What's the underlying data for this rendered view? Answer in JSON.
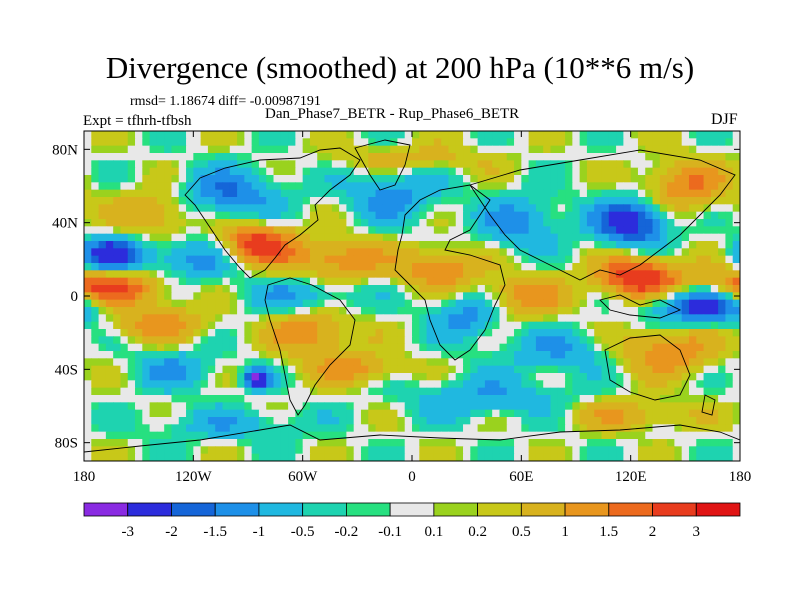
{
  "header": {
    "title": "Divergence (smoothed) at 200 hPa (10**6 m/s)",
    "stats": "rmsd= 1.18674 diff= -0.00987191",
    "experiment": "Expt = tfhrh-tfbsh",
    "cases": "Dan_Phase7_BETR - Rup_Phase6_BETR",
    "season": "DJF"
  },
  "chart_data": {
    "type": "heatmap",
    "title": "Divergence (smoothed) at 200 hPa (10**6 m/s)",
    "xlabel": "",
    "ylabel": "",
    "xlim": [
      -180,
      180
    ],
    "ylim": [
      -90,
      90
    ],
    "x_ticks": [
      {
        "value": -180,
        "label": "180"
      },
      {
        "value": -120,
        "label": "120W"
      },
      {
        "value": -60,
        "label": "60W"
      },
      {
        "value": 0,
        "label": "0"
      },
      {
        "value": 60,
        "label": "60E"
      },
      {
        "value": 120,
        "label": "120E"
      },
      {
        "value": 180,
        "label": "180"
      }
    ],
    "y_ticks": [
      {
        "value": 80,
        "label": "80N"
      },
      {
        "value": 40,
        "label": "40N"
      },
      {
        "value": 0,
        "label": "0"
      },
      {
        "value": -40,
        "label": "40S"
      },
      {
        "value": -80,
        "label": "80S"
      }
    ],
    "colorbar": {
      "colors": [
        "#8a2be2",
        "#2c2cdc",
        "#1565d8",
        "#1e90e8",
        "#20b8e0",
        "#1ed3b0",
        "#27e080",
        "#e8e8e8",
        "#9ad21e",
        "#c8c819",
        "#d8b21e",
        "#e8961e",
        "#ec6a1e",
        "#e83c1e",
        "#e01414"
      ],
      "labels": [
        "-3",
        "-2",
        "-1.5",
        "-1",
        "-0.5",
        "-0.2",
        "-0.1",
        "0.1",
        "0.2",
        "0.5",
        "1",
        "1.5",
        "2",
        "3"
      ]
    },
    "features": [
      {
        "lon": -170,
        "lat": 5,
        "value": 2.5,
        "sx": 22,
        "sy": 7
      },
      {
        "lon": -165,
        "lat": 22,
        "value": -2.5,
        "sx": 12,
        "sy": 7
      },
      {
        "lon": -120,
        "lat": 20,
        "value": -1.2,
        "sx": 20,
        "sy": 8
      },
      {
        "lon": -85,
        "lat": 28,
        "value": 2.5,
        "sx": 14,
        "sy": 8
      },
      {
        "lon": -100,
        "lat": 55,
        "value": -1.5,
        "sx": 20,
        "sy": 10
      },
      {
        "lon": -140,
        "lat": 45,
        "value": 1.2,
        "sx": 16,
        "sy": 9
      },
      {
        "lon": -40,
        "lat": 20,
        "value": 1.5,
        "sx": 18,
        "sy": 8
      },
      {
        "lon": -60,
        "lat": 0,
        "value": -1.0,
        "sx": 22,
        "sy": 7
      },
      {
        "lon": -55,
        "lat": -20,
        "value": 1.4,
        "sx": 16,
        "sy": 9
      },
      {
        "lon": -85,
        "lat": -45,
        "value": -3.0,
        "sx": 5,
        "sy": 4
      },
      {
        "lon": -30,
        "lat": -40,
        "value": 1.2,
        "sx": 18,
        "sy": 6
      },
      {
        "lon": -10,
        "lat": 55,
        "value": -1.2,
        "sx": 18,
        "sy": 10
      },
      {
        "lon": 15,
        "lat": 15,
        "value": 1.6,
        "sx": 14,
        "sy": 8
      },
      {
        "lon": 30,
        "lat": -10,
        "value": -1.3,
        "sx": 14,
        "sy": 9
      },
      {
        "lon": 60,
        "lat": 40,
        "value": -1.2,
        "sx": 16,
        "sy": 10
      },
      {
        "lon": 60,
        "lat": 0,
        "value": 1.3,
        "sx": 18,
        "sy": 8
      },
      {
        "lon": 80,
        "lat": -30,
        "value": -1.0,
        "sx": 20,
        "sy": 8
      },
      {
        "lon": 120,
        "lat": 40,
        "value": -2.5,
        "sx": 14,
        "sy": 9
      },
      {
        "lon": 125,
        "lat": 10,
        "value": 2.7,
        "sx": 16,
        "sy": 8
      },
      {
        "lon": 150,
        "lat": 60,
        "value": 1.5,
        "sx": 16,
        "sy": 10
      },
      {
        "lon": 160,
        "lat": -5,
        "value": -2.5,
        "sx": 20,
        "sy": 7
      },
      {
        "lon": 140,
        "lat": -30,
        "value": 1.5,
        "sx": 18,
        "sy": 9
      },
      {
        "lon": 40,
        "lat": -55,
        "value": -1.0,
        "sx": 30,
        "sy": 8
      },
      {
        "lon": -100,
        "lat": -70,
        "value": -0.8,
        "sx": 30,
        "sy": 6
      },
      {
        "lon": 120,
        "lat": -65,
        "value": 0.9,
        "sx": 25,
        "sy": 6
      },
      {
        "lon": 0,
        "lat": 75,
        "value": 0.8,
        "sx": 30,
        "sy": 5
      },
      {
        "lon": -140,
        "lat": -15,
        "value": 1.2,
        "sx": 20,
        "sy": 7
      },
      {
        "lon": -130,
        "lat": -40,
        "value": -1.0,
        "sx": 16,
        "sy": 8
      }
    ]
  }
}
